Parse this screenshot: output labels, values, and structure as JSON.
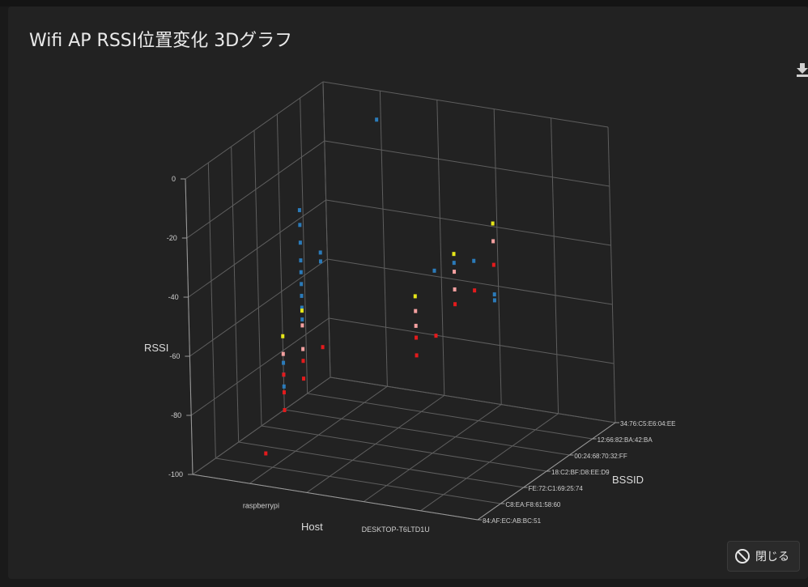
{
  "dialog": {
    "title": "Wifi AP RSSI位置変化 3Dグラフ",
    "close_label": "閉じる",
    "close_icon": "ban-icon",
    "download_icon": "download-icon"
  },
  "chart_data": {
    "type": "scatter",
    "dimensions": "3d",
    "zlabel": "RSSI",
    "xlabel": "Host",
    "ylabel": "BSSID",
    "zlim": [
      -100,
      0
    ],
    "z_ticks": [
      0,
      -20,
      -40,
      -60,
      -80,
      -100
    ],
    "hosts": [
      "raspberrypi",
      "DESKTOP-T6LTD1U"
    ],
    "bssids": [
      "34:76:C5:E6:04:EE",
      "12:66:82:BA:42:BA",
      "00:24:68:70:32:FF",
      "18:C2:BF:D8:EE:D9",
      "FE:72:C1:69:25:74",
      "C8:EA:F8:61:58:60",
      "84:AF:EC:AB:BC:51"
    ],
    "background": "#222222",
    "grid": true,
    "colors": {
      "blue": "#2b7bba",
      "red": "#e41a1c",
      "pink": "#f4a0a0",
      "yellow": "#e6e619"
    },
    "series": [
      {
        "color": "blue",
        "points": [
          {
            "host": "raspberrypi",
            "bssid": "34:76:C5:E6:04:EE",
            "rssi": -7
          },
          {
            "host": "raspberrypi",
            "bssid": "FE:72:C1:69:25:74",
            "rssi": -19
          },
          {
            "host": "raspberrypi",
            "bssid": "FE:72:C1:69:25:74",
            "rssi": -24
          },
          {
            "host": "raspberrypi",
            "bssid": "FE:72:C1:69:25:74",
            "rssi": -30
          },
          {
            "host": "raspberrypi",
            "bssid": "FE:72:C1:69:25:74",
            "rssi": -36
          },
          {
            "host": "raspberrypi",
            "bssid": "FE:72:C1:69:25:74",
            "rssi": -40
          },
          {
            "host": "raspberrypi",
            "bssid": "FE:72:C1:69:25:74",
            "rssi": -44
          },
          {
            "host": "raspberrypi",
            "bssid": "FE:72:C1:69:25:74",
            "rssi": -48
          },
          {
            "host": "raspberrypi",
            "bssid": "FE:72:C1:69:25:74",
            "rssi": -52
          },
          {
            "host": "raspberrypi",
            "bssid": "FE:72:C1:69:25:74",
            "rssi": -56
          },
          {
            "host": "raspberrypi",
            "bssid": "18:C2:BF:D8:EE:D9",
            "rssi": -38
          },
          {
            "host": "raspberrypi",
            "bssid": "18:C2:BF:D8:EE:D9",
            "rssi": -41
          },
          {
            "host": "raspberrypi",
            "bssid": "C8:EA:F8:61:58:60",
            "rssi": -66
          },
          {
            "host": "raspberrypi",
            "bssid": "C8:EA:F8:61:58:60",
            "rssi": -70
          },
          {
            "host": "raspberrypi",
            "bssid": "C8:EA:F8:61:58:60",
            "rssi": -74
          },
          {
            "host": "DESKTOP-T6LTD1U",
            "bssid": "34:76:C5:E6:04:EE",
            "rssi": -62
          },
          {
            "host": "DESKTOP-T6LTD1U",
            "bssid": "34:76:C5:E6:04:EE",
            "rssi": -60
          },
          {
            "host": "DESKTOP-T6LTD1U",
            "bssid": "12:66:82:BA:42:BA",
            "rssi": -44
          },
          {
            "host": "DESKTOP-T6LTD1U",
            "bssid": "00:24:68:70:32:FF",
            "rssi": -40
          },
          {
            "host": "DESKTOP-T6LTD1U",
            "bssid": "18:C2:BF:D8:EE:D9",
            "rssi": -38
          }
        ]
      },
      {
        "color": "yellow",
        "points": [
          {
            "host": "raspberrypi",
            "bssid": "C8:EA:F8:61:58:60",
            "rssi": -57
          },
          {
            "host": "raspberrypi",
            "bssid": "FE:72:C1:69:25:74",
            "rssi": -53
          },
          {
            "host": "DESKTOP-T6LTD1U",
            "bssid": "FE:72:C1:69:25:74",
            "rssi": -42
          },
          {
            "host": "DESKTOP-T6LTD1U",
            "bssid": "00:24:68:70:32:FF",
            "rssi": -37
          },
          {
            "host": "DESKTOP-T6LTD1U",
            "bssid": "34:76:C5:E6:04:EE",
            "rssi": -36
          }
        ]
      },
      {
        "color": "pink",
        "points": [
          {
            "host": "raspberrypi",
            "bssid": "C8:EA:F8:61:58:60",
            "rssi": -63
          },
          {
            "host": "raspberrypi",
            "bssid": "FE:72:C1:69:25:74",
            "rssi": -58
          },
          {
            "host": "raspberrypi",
            "bssid": "FE:72:C1:69:25:74",
            "rssi": -66
          },
          {
            "host": "DESKTOP-T6LTD1U",
            "bssid": "FE:72:C1:69:25:74",
            "rssi": -47
          },
          {
            "host": "DESKTOP-T6LTD1U",
            "bssid": "FE:72:C1:69:25:74",
            "rssi": -52
          },
          {
            "host": "DESKTOP-T6LTD1U",
            "bssid": "00:24:68:70:32:FF",
            "rssi": -43
          },
          {
            "host": "DESKTOP-T6LTD1U",
            "bssid": "00:24:68:70:32:FF",
            "rssi": -49
          },
          {
            "host": "DESKTOP-T6LTD1U",
            "bssid": "34:76:C5:E6:04:EE",
            "rssi": -42
          }
        ]
      },
      {
        "color": "red",
        "points": [
          {
            "host": "raspberrypi",
            "bssid": "84:AF:EC:AB:BC:51",
            "rssi": -92
          },
          {
            "host": "raspberrypi",
            "bssid": "C8:EA:F8:61:58:60",
            "rssi": -70
          },
          {
            "host": "raspberrypi",
            "bssid": "C8:EA:F8:61:58:60",
            "rssi": -76
          },
          {
            "host": "raspberrypi",
            "bssid": "C8:EA:F8:61:58:60",
            "rssi": -82
          },
          {
            "host": "raspberrypi",
            "bssid": "FE:72:C1:69:25:74",
            "rssi": -70
          },
          {
            "host": "raspberrypi",
            "bssid": "FE:72:C1:69:25:74",
            "rssi": -76
          },
          {
            "host": "raspberrypi",
            "bssid": "18:C2:BF:D8:EE:D9",
            "rssi": -70
          },
          {
            "host": "DESKTOP-T6LTD1U",
            "bssid": "FE:72:C1:69:25:74",
            "rssi": -56
          },
          {
            "host": "DESKTOP-T6LTD1U",
            "bssid": "FE:72:C1:69:25:74",
            "rssi": -62
          },
          {
            "host": "DESKTOP-T6LTD1U",
            "bssid": "18:C2:BF:D8:EE:D9",
            "rssi": -60
          },
          {
            "host": "DESKTOP-T6LTD1U",
            "bssid": "00:24:68:70:32:FF",
            "rssi": -54
          },
          {
            "host": "DESKTOP-T6LTD1U",
            "bssid": "12:66:82:BA:42:BA",
            "rssi": -54
          },
          {
            "host": "DESKTOP-T6LTD1U",
            "bssid": "34:76:C5:E6:04:EE",
            "rssi": -50
          }
        ]
      }
    ]
  }
}
